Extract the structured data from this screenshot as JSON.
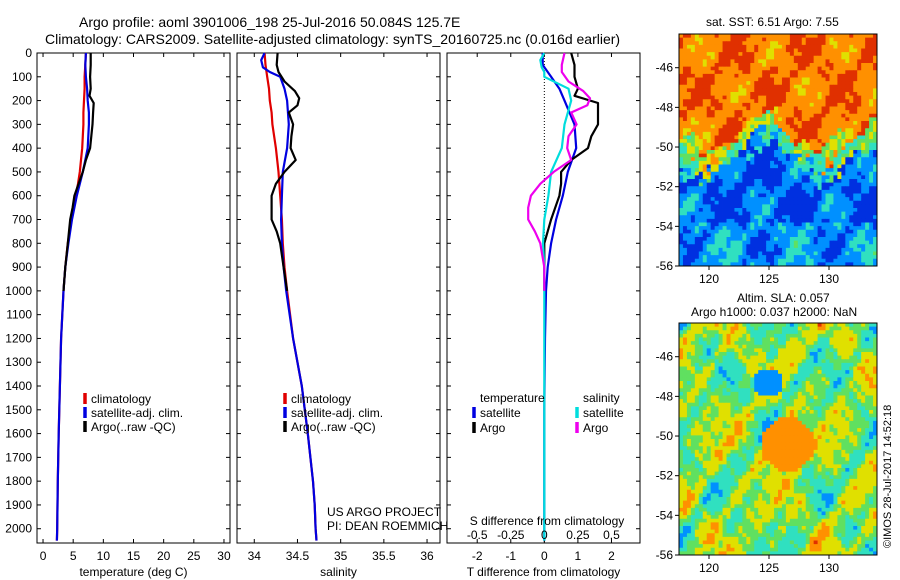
{
  "titles": {
    "line1": "Argo profile: aoml 3901006_198 25-Jul-2016 50.084S 125.7E",
    "line2": "Climatology: CARS2009. Satellite-adjusted climatology: synTS_20160725.nc (0.016d earlier)"
  },
  "credit": {
    "project": "US ARGO PROJECT",
    "pi": "PI: DEAN ROEMMICH",
    "watermark": "©IMOS 28-Jul-2017 14:52:18"
  },
  "colors": {
    "climatology": "#e00000",
    "satellite": "#0000e0",
    "argo": "#000000",
    "s_satellite": "#00dddd",
    "s_argo": "#ee00ee"
  },
  "depth_ticks": [
    "0",
    "100",
    "200",
    "300",
    "400",
    "500",
    "600",
    "700",
    "800",
    "900",
    "1000",
    "1100",
    "1200",
    "1300",
    "1400",
    "1500",
    "1600",
    "1700",
    "1800",
    "1900",
    "2000"
  ],
  "chart_data": [
    {
      "type": "line",
      "xlabel": "temperature (deg C)",
      "ylabel": "",
      "xlim": [
        -1,
        31
      ],
      "ylim": [
        2060,
        0
      ],
      "xticks": [
        "0",
        "5",
        "10",
        "15",
        "20",
        "25",
        "30"
      ],
      "legend_position": "lower-center",
      "legend": [
        "climatology",
        "satellite-adj. clim.",
        "Argo(..raw -QC)"
      ],
      "series": [
        {
          "name": "climatology",
          "y": [
            0,
            50,
            100,
            150,
            200,
            250,
            300,
            350,
            400,
            450,
            500,
            550,
            600,
            700,
            800,
            900,
            1000,
            1200,
            1400,
            1600,
            1800,
            1900,
            2000,
            2050
          ],
          "x": [
            7.1,
            7.0,
            6.9,
            6.9,
            6.8,
            6.7,
            6.7,
            6.6,
            6.5,
            6.3,
            6.1,
            5.8,
            5.4,
            4.7,
            4.1,
            3.7,
            3.4,
            3.0,
            2.8,
            2.6,
            2.45,
            2.4,
            2.35,
            2.3
          ]
        },
        {
          "name": "satellite-adj. clim.",
          "y": [
            0,
            50,
            100,
            150,
            200,
            250,
            300,
            350,
            400,
            450,
            500,
            550,
            600,
            700,
            800,
            900,
            1000,
            1200,
            1400,
            1600,
            1800,
            1900,
            2000,
            2050
          ],
          "x": [
            7.1,
            7.0,
            7.1,
            7.3,
            7.4,
            7.6,
            7.6,
            7.5,
            7.4,
            7.0,
            6.6,
            6.1,
            5.6,
            4.8,
            4.2,
            3.7,
            3.4,
            3.0,
            2.8,
            2.6,
            2.45,
            2.4,
            2.35,
            2.3
          ]
        },
        {
          "name": "Argo(..raw -QC)",
          "y": [
            0,
            50,
            100,
            150,
            180,
            210,
            250,
            300,
            350,
            400,
            450,
            500,
            550,
            600,
            650,
            700,
            750,
            800,
            900,
            1000
          ],
          "x": [
            7.9,
            7.9,
            7.8,
            7.9,
            7.7,
            8.4,
            8.3,
            8.2,
            8.0,
            7.8,
            7.1,
            6.6,
            5.9,
            5.2,
            4.9,
            4.5,
            4.3,
            4.1,
            3.7,
            3.4
          ]
        }
      ]
    },
    {
      "type": "line",
      "xlabel": "salinity",
      "ylabel": "",
      "xlim": [
        33.8,
        36.15
      ],
      "ylim": [
        2060,
        0
      ],
      "xticks": [
        "34",
        "34.5",
        "35",
        "35.5",
        "36"
      ],
      "legend_position": "lower-center",
      "legend": [
        "climatology",
        "satellite-adj. clim.",
        "Argo(..raw -QC)"
      ],
      "series": [
        {
          "name": "climatology",
          "y": [
            0,
            50,
            100,
            150,
            200,
            250,
            300,
            400,
            500,
            600,
            700,
            800,
            900,
            1000,
            1200,
            1400,
            1600,
            1800,
            1900,
            2000,
            2050
          ],
          "x": [
            34.12,
            34.13,
            34.15,
            34.17,
            34.18,
            34.2,
            34.21,
            34.25,
            34.28,
            34.3,
            34.32,
            34.33,
            34.35,
            34.38,
            34.45,
            34.55,
            34.62,
            34.68,
            34.7,
            34.71,
            34.72
          ]
        },
        {
          "name": "satellite-adj. clim.",
          "y": [
            0,
            30,
            60,
            80,
            100,
            150,
            200,
            300,
            400,
            500,
            600,
            700,
            800,
            900,
            1000,
            1200,
            1400,
            1600,
            1800,
            1900,
            2000,
            2050
          ],
          "x": [
            34.12,
            34.08,
            34.1,
            34.18,
            34.3,
            34.35,
            34.38,
            34.4,
            34.38,
            34.33,
            34.32,
            34.31,
            34.32,
            34.34,
            34.37,
            34.45,
            34.55,
            34.62,
            34.68,
            34.7,
            34.71,
            34.72
          ]
        },
        {
          "name": "Argo(..raw -QC)",
          "y": [
            0,
            50,
            80,
            120,
            160,
            190,
            220,
            250,
            300,
            350,
            400,
            450,
            500,
            550,
            600,
            650,
            700,
            750,
            800,
            900,
            1000
          ],
          "x": [
            34.27,
            34.26,
            34.28,
            34.35,
            34.47,
            34.52,
            34.5,
            34.4,
            34.45,
            34.43,
            34.42,
            34.48,
            34.35,
            34.25,
            34.2,
            34.2,
            34.2,
            34.26,
            34.3,
            34.34,
            34.38
          ]
        }
      ]
    },
    {
      "type": "line",
      "xlabel": "T difference from climatology",
      "xlabel_top": "S difference from climatology",
      "ylabel": "",
      "xlim": [
        -2.9,
        2.85
      ],
      "ylim": [
        2060,
        0
      ],
      "xticks": [
        "-2",
        "-1",
        "0",
        "1",
        "2"
      ],
      "xticks_top": [
        "-0.5",
        "-0.25",
        "0",
        "0.25",
        "0.5"
      ],
      "legend_position": "upper-center",
      "legend_headers": [
        "temperature",
        "salinity"
      ],
      "legend": [
        "satellite",
        "Argo",
        "satellite",
        "Argo"
      ],
      "series": [
        {
          "name": "T satellite",
          "y": [
            0,
            50,
            100,
            150,
            200,
            300,
            400,
            500,
            600,
            700,
            800,
            900,
            1000,
            1200,
            1500,
            1800,
            2000,
            2050
          ],
          "x": [
            -0.05,
            -0.05,
            0.2,
            0.45,
            0.6,
            0.9,
            0.95,
            0.7,
            0.55,
            0.35,
            0.2,
            0.1,
            0.05,
            0.02,
            0.0,
            0.0,
            0.0,
            0.0
          ]
        },
        {
          "name": "T Argo",
          "y": [
            0,
            50,
            100,
            150,
            180,
            210,
            250,
            300,
            350,
            400,
            450,
            500,
            550,
            600,
            700,
            800,
            900,
            1000
          ],
          "x": [
            0.8,
            0.9,
            0.9,
            1.0,
            0.9,
            1.6,
            1.6,
            1.6,
            1.4,
            1.3,
            0.8,
            0.5,
            0.5,
            0.45,
            0.2,
            0.0,
            0.0,
            0.0
          ]
        },
        {
          "name": "S satellite",
          "y": [
            0,
            30,
            60,
            80,
            100,
            150,
            200,
            300,
            400,
            500,
            600,
            700,
            800,
            900,
            1000,
            1200,
            1500,
            1800,
            2000,
            2050
          ],
          "x": [
            0.0,
            -0.03,
            -0.02,
            0.0,
            0.0,
            0.18,
            0.2,
            0.15,
            0.13,
            0.05,
            0.03,
            0.0,
            -0.01,
            0.0,
            0.0,
            0.0,
            0.0,
            0.0,
            0.0,
            0.0
          ]
        },
        {
          "name": "S Argo",
          "y": [
            0,
            50,
            80,
            120,
            160,
            190,
            220,
            250,
            300,
            350,
            400,
            450,
            500,
            550,
            600,
            650,
            700,
            750,
            800,
            900,
            1000
          ],
          "x": [
            0.15,
            0.13,
            0.13,
            0.18,
            0.29,
            0.34,
            0.32,
            0.2,
            0.24,
            0.18,
            0.17,
            0.2,
            0.07,
            -0.03,
            -0.1,
            -0.12,
            -0.12,
            -0.07,
            -0.03,
            0.0,
            0.0
          ]
        }
      ]
    },
    {
      "type": "heatmap",
      "title": "sat. SST: 6.51  Argo: 7.55",
      "xticks": [
        "120",
        "125",
        "130"
      ],
      "yticks": [
        "-46",
        "-48",
        "-50",
        "-52",
        "-54",
        "-56"
      ],
      "xlim": [
        117.5,
        134
      ],
      "ylim": [
        -56,
        -44.3
      ]
    },
    {
      "type": "heatmap",
      "title": "Altim. SLA: 0.057",
      "subtitle": "Argo h1000: 0.037 h2000: NaN",
      "xticks": [
        "120",
        "125",
        "130"
      ],
      "yticks": [
        "-46",
        "-48",
        "-50",
        "-52",
        "-54",
        "-56"
      ],
      "xlim": [
        117.5,
        134
      ],
      "ylim": [
        -56,
        -44.3
      ]
    }
  ]
}
